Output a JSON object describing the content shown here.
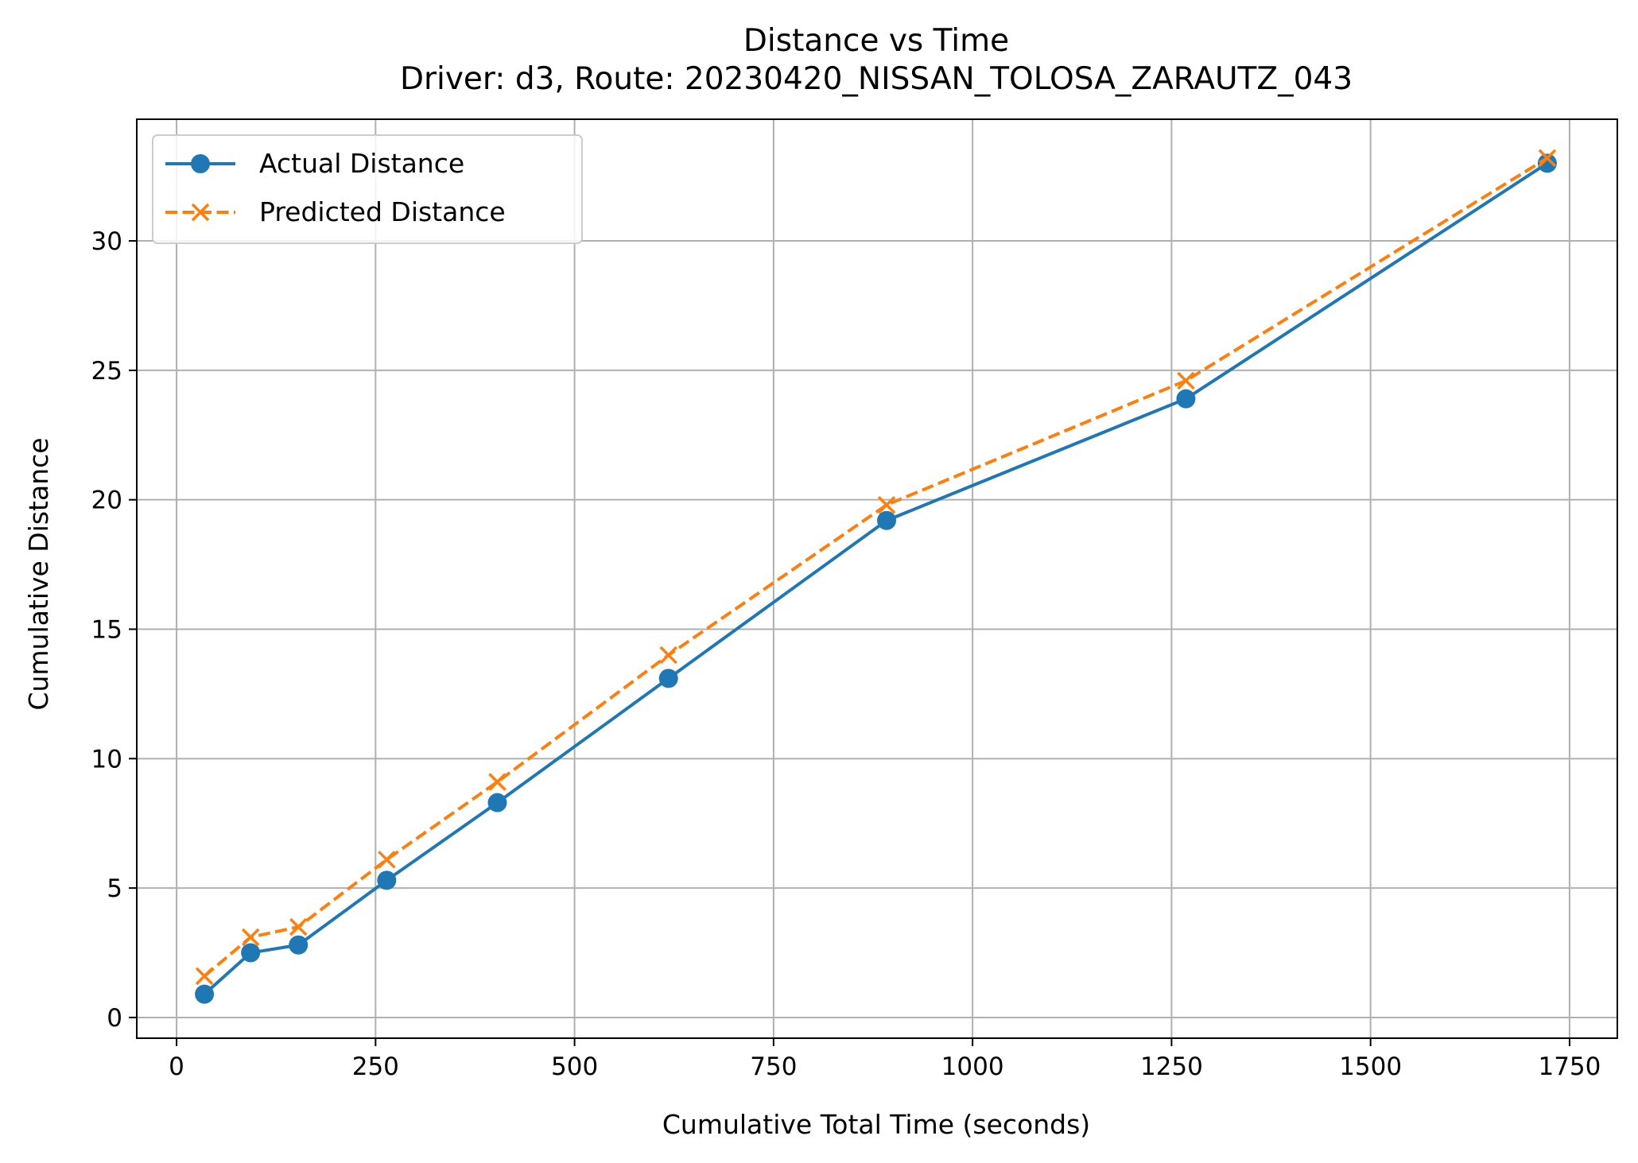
{
  "chart_data": {
    "type": "line",
    "title": "Distance vs Time",
    "subtitle": "Driver: d3, Route: 20230420_NISSAN_TOLOSA_ZARAUTZ_043",
    "xlabel": "Cumulative Total Time (seconds)",
    "ylabel": "Cumulative Distance",
    "xlim": [
      -50,
      1810
    ],
    "ylim": [
      -0.8,
      34.7
    ],
    "xticks": [
      0,
      250,
      500,
      750,
      1000,
      1250,
      1500,
      1750
    ],
    "yticks": [
      0,
      5,
      10,
      15,
      20,
      25,
      30
    ],
    "grid": true,
    "legend_position": "upper-left",
    "series": [
      {
        "name": "Actual Distance",
        "color": "#1f77b4",
        "line_style": "solid",
        "marker": "circle",
        "x": [
          35,
          93,
          153,
          264,
          403,
          618,
          892,
          1268,
          1722
        ],
        "y": [
          0.9,
          2.5,
          2.8,
          5.3,
          8.3,
          13.1,
          19.2,
          23.9,
          33.0
        ]
      },
      {
        "name": "Predicted Distance",
        "color": "#ff7f0e",
        "line_style": "dashed",
        "marker": "x",
        "x": [
          35,
          93,
          153,
          264,
          403,
          618,
          892,
          1268,
          1722
        ],
        "y": [
          1.6,
          3.1,
          3.5,
          6.1,
          9.1,
          14.0,
          19.8,
          24.6,
          33.2
        ]
      }
    ]
  }
}
